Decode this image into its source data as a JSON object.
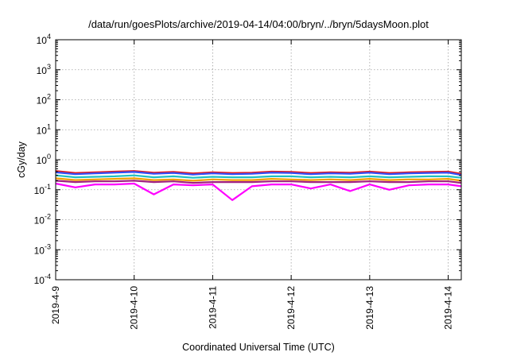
{
  "chart_data": {
    "type": "line",
    "title": "/data/run/goesPlots/archive/2019-04-14/04:00/bryn/../bryn/5daysMoon.plot",
    "xlabel": "Coordinated Universal Time (UTC)",
    "ylabel": "cGy/day",
    "y_scale": "log",
    "ylim": [
      0.0001,
      10000
    ],
    "y_ticks": [
      {
        "value": 0.0001,
        "base": "10",
        "exp": "-4"
      },
      {
        "value": 0.001,
        "base": "10",
        "exp": "-3"
      },
      {
        "value": 0.01,
        "base": "10",
        "exp": "-2"
      },
      {
        "value": 0.1,
        "base": "10",
        "exp": "-1"
      },
      {
        "value": 1,
        "base": "10",
        "exp": "0"
      },
      {
        "value": 10,
        "base": "10",
        "exp": "1"
      },
      {
        "value": 100,
        "base": "10",
        "exp": "2"
      },
      {
        "value": 1000,
        "base": "10",
        "exp": "3"
      },
      {
        "value": 10000,
        "base": "10",
        "exp": "4"
      }
    ],
    "xlim": [
      "2019-04-09T00:00",
      "2019-04-14T04:00"
    ],
    "x_ticks": [
      "2019-4-9",
      "2019-4-10",
      "2019-4-11",
      "2019-4-12",
      "2019-4-13",
      "2019-4-14"
    ],
    "grid": true,
    "x": [
      "2019-04-09T00:00",
      "2019-04-09T06:00",
      "2019-04-09T12:00",
      "2019-04-09T18:00",
      "2019-04-10T00:00",
      "2019-04-10T06:00",
      "2019-04-10T12:00",
      "2019-04-10T18:00",
      "2019-04-11T00:00",
      "2019-04-11T06:00",
      "2019-04-11T12:00",
      "2019-04-11T18:00",
      "2019-04-12T00:00",
      "2019-04-12T06:00",
      "2019-04-12T12:00",
      "2019-04-12T18:00",
      "2019-04-13T00:00",
      "2019-04-13T06:00",
      "2019-04-13T12:00",
      "2019-04-13T18:00",
      "2019-04-14T00:00",
      "2019-04-14T04:00"
    ],
    "series": [
      {
        "color": "#e41a1c",
        "values": [
          0.42,
          0.36,
          0.38,
          0.4,
          0.42,
          0.37,
          0.39,
          0.35,
          0.38,
          0.36,
          0.37,
          0.4,
          0.39,
          0.36,
          0.38,
          0.37,
          0.4,
          0.36,
          0.38,
          0.39,
          0.4,
          0.34
        ]
      },
      {
        "color": "#3050ff",
        "values": [
          0.38,
          0.33,
          0.35,
          0.37,
          0.39,
          0.34,
          0.36,
          0.32,
          0.35,
          0.33,
          0.34,
          0.37,
          0.36,
          0.33,
          0.35,
          0.34,
          0.37,
          0.33,
          0.35,
          0.36,
          0.37,
          0.31
        ]
      },
      {
        "color": "#20c0c0",
        "values": [
          0.3,
          0.26,
          0.27,
          0.28,
          0.3,
          0.26,
          0.28,
          0.25,
          0.27,
          0.26,
          0.26,
          0.28,
          0.28,
          0.26,
          0.27,
          0.26,
          0.28,
          0.26,
          0.27,
          0.28,
          0.28,
          0.25
        ]
      },
      {
        "color": "#f0a000",
        "values": [
          0.24,
          0.21,
          0.22,
          0.23,
          0.24,
          0.21,
          0.22,
          0.2,
          0.22,
          0.21,
          0.21,
          0.23,
          0.22,
          0.21,
          0.22,
          0.21,
          0.23,
          0.21,
          0.22,
          0.22,
          0.23,
          0.2
        ]
      },
      {
        "color": "#a02080",
        "values": [
          0.2,
          0.18,
          0.19,
          0.19,
          0.2,
          0.18,
          0.19,
          0.17,
          0.18,
          0.18,
          0.18,
          0.19,
          0.19,
          0.18,
          0.18,
          0.18,
          0.19,
          0.18,
          0.18,
          0.19,
          0.19,
          0.17
        ]
      },
      {
        "color": "#ff00ff",
        "values": [
          0.16,
          0.12,
          0.15,
          0.15,
          0.16,
          0.07,
          0.15,
          0.14,
          0.15,
          0.045,
          0.13,
          0.15,
          0.15,
          0.11,
          0.15,
          0.09,
          0.15,
          0.1,
          0.14,
          0.15,
          0.15,
          0.13
        ]
      }
    ]
  }
}
